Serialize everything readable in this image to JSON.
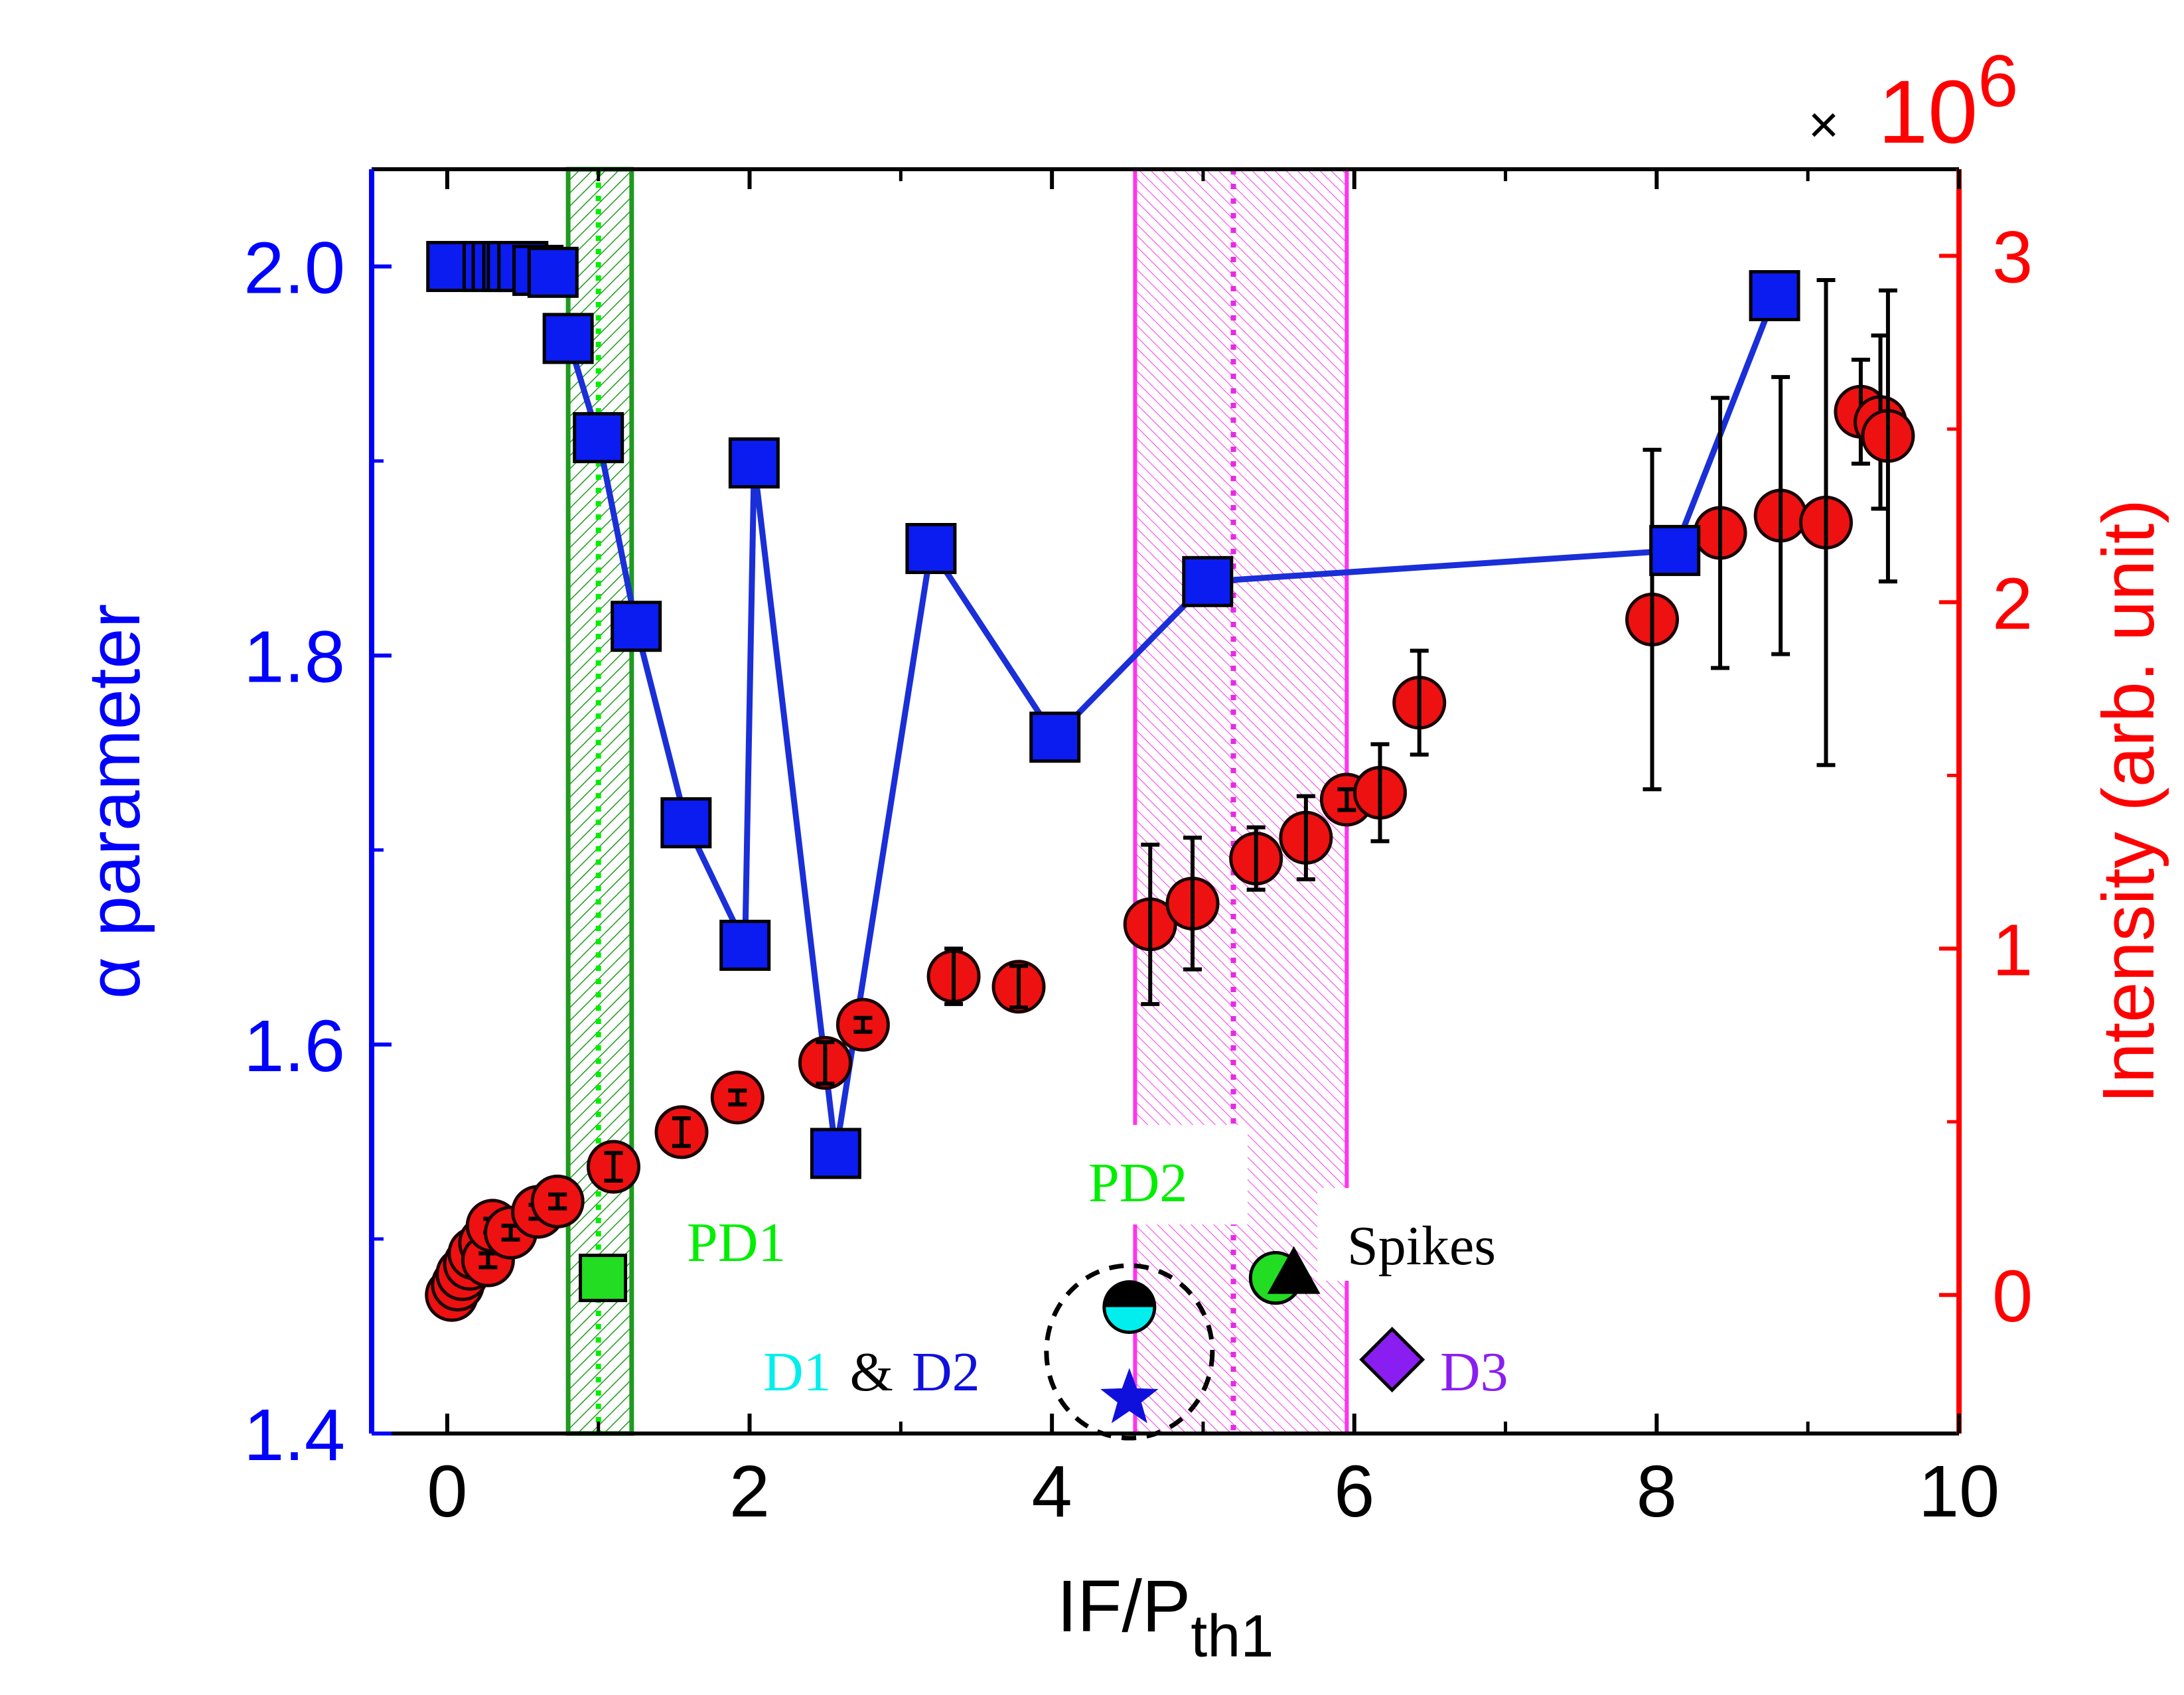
{
  "chart_data": {
    "type": "scatter",
    "xlabel_main": "IF/P",
    "xlabel_sub": "th1",
    "ylabel_left": "α parameter",
    "ylabel_right": "Intensity (arb. unit)",
    "right_multiplier": "×",
    "right_multiplier_base": "10",
    "right_multiplier_exp": "6",
    "xlim": [
      -0.5,
      10
    ],
    "ylim_left": [
      1.4,
      2.05
    ],
    "ylim_right": [
      -0.4,
      3.25
    ],
    "x_ticks": [
      0,
      2,
      4,
      6,
      8,
      10
    ],
    "x_tick_labels": [
      "0",
      "2",
      "4",
      "6",
      "8",
      "10"
    ],
    "y_left_ticks": [
      1.4,
      1.6,
      1.8,
      2.0
    ],
    "y_left_tick_labels": [
      "1.4",
      "1.6",
      "1.8",
      "2.0"
    ],
    "y_right_ticks": [
      0,
      1,
      2,
      3
    ],
    "y_right_tick_labels": [
      "0",
      "1",
      "2",
      "3"
    ],
    "colors": {
      "left_axis": "#0000ff",
      "right_axis": "#ff0000",
      "alpha_marker": "#0b1cf0",
      "alpha_line": "#1a2fd8",
      "intensity_marker": "#ee1111",
      "pd1_band": "#1f9a1f",
      "pd1_dotted": "#00ee00",
      "pd2_band": "#ff33ee",
      "pd2_dotted": "#e62ae6",
      "green_label": "#00ee00",
      "cyan_label": "#00eeee",
      "blue_label": "#1010dd",
      "purple_label": "#8a1ef0"
    },
    "bands": [
      {
        "name": "PD1",
        "x_start": 0.8,
        "x_end": 1.22,
        "center": 1.0
      },
      {
        "name": "PD2",
        "x_start": 4.55,
        "x_end": 5.95,
        "center": 5.2
      }
    ],
    "alpha_series": [
      {
        "name": "α parameter",
        "connected": false,
        "x": [
          0.03,
          0.27,
          0.33,
          0.4,
          0.43,
          0.5,
          0.6,
          0.7
        ],
        "y": [
          2.0,
          2.0,
          2.0,
          2.0,
          2.0,
          2.0,
          1.998,
          1.997
        ]
      },
      {
        "name": "α parameter",
        "connected": true,
        "x": [
          0.8,
          1.0,
          1.25,
          1.58,
          1.97,
          2.03,
          2.57,
          3.2,
          4.02,
          5.03,
          8.12,
          8.78
        ],
        "y": [
          1.963,
          1.912,
          1.815,
          1.714,
          1.651,
          1.899,
          1.544,
          1.855,
          1.758,
          1.838,
          1.854,
          1.985
        ]
      }
    ],
    "intensity_series": {
      "name": "Intensity",
      "x": [
        0.03,
        0.07,
        0.1,
        0.15,
        0.18,
        0.25,
        0.27,
        0.3,
        0.42,
        0.6,
        0.73,
        1.1,
        1.55,
        1.92,
        2.5,
        2.75,
        3.35,
        3.78,
        4.65,
        4.93,
        5.35,
        5.68,
        5.95,
        6.17,
        6.43,
        7.97,
        8.42,
        8.82,
        9.12,
        9.35,
        9.48,
        9.53
      ],
      "y": [
        0.0,
        0.03,
        0.06,
        0.09,
        0.12,
        0.15,
        0.1,
        0.2,
        0.18,
        0.24,
        0.27,
        0.37,
        0.47,
        0.57,
        0.67,
        0.78,
        0.92,
        0.89,
        1.07,
        1.13,
        1.26,
        1.32,
        1.43,
        1.45,
        1.71,
        1.95,
        2.2,
        2.25,
        2.23,
        2.55,
        2.52,
        2.48
      ],
      "err": [
        0.01,
        0.01,
        0.01,
        0.02,
        0.02,
        0.01,
        0.02,
        0.02,
        0.02,
        0.02,
        0.02,
        0.04,
        0.04,
        0.02,
        0.06,
        0.02,
        0.08,
        0.06,
        0.23,
        0.19,
        0.09,
        0.12,
        0.03,
        0.14,
        0.15,
        0.49,
        0.39,
        0.4,
        0.7,
        0.15,
        0.25,
        0.42
      ]
    },
    "annotations": {
      "pd1": "PD1",
      "pd2": "PD2",
      "spikes": "Spikes",
      "d1": "D1",
      "amp": "&",
      "d2": "D2",
      "d3": "D3"
    },
    "markers": [
      {
        "name": "pd1-marker",
        "shape": "square",
        "x": 1.03,
        "y_left": 1.48
      },
      {
        "name": "half-circle-marker",
        "shape": "half-circle",
        "x": 4.6,
        "y_left": 1.465
      },
      {
        "name": "star-marker",
        "shape": "star",
        "x": 4.6,
        "y_left": 1.418
      },
      {
        "name": "circle-marker",
        "shape": "circle",
        "x": 5.48,
        "y_left": 1.48
      },
      {
        "name": "triangle-marker",
        "shape": "triangle",
        "x": 5.6,
        "y_left": 1.482
      },
      {
        "name": "diamond-marker",
        "shape": "diamond",
        "x": 6.25,
        "y_left": 1.438
      }
    ],
    "circle_annotation": {
      "x": 4.6,
      "y_left": 1.442
    }
  }
}
